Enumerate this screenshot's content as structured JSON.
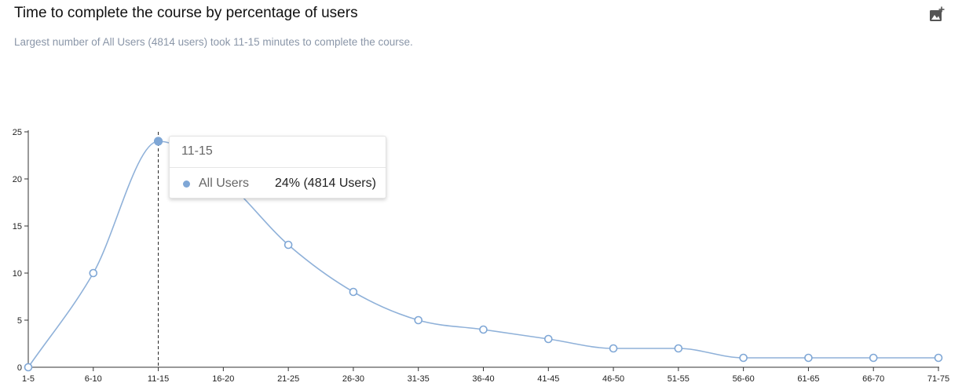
{
  "header": {
    "title": "Time to complete the course by percentage of users",
    "subtitle": "Largest number of All Users (4814 users) took 11-15 minutes to complete the course.",
    "add_image_icon": "add-image-icon"
  },
  "tooltip": {
    "category": "11-15",
    "series_name": "All Users",
    "value_text": "24% (4814 Users)"
  },
  "colors": {
    "series": "#8fb1d9",
    "marker_fill": "#ffffff",
    "active_marker": "#7fa7d6",
    "axis": "#333333"
  },
  "chart_data": {
    "type": "line",
    "title": "Time to complete the course by percentage of users",
    "subtitle": "Largest number of All Users (4814 users) took 11-15 minutes to complete the course.",
    "xlabel": "",
    "ylabel": "",
    "categories": [
      "1-5",
      "6-10",
      "11-15",
      "16-20",
      "21-25",
      "26-30",
      "31-35",
      "36-40",
      "41-45",
      "46-50",
      "51-55",
      "56-60",
      "61-65",
      "66-70",
      "71-75"
    ],
    "series": [
      {
        "name": "All Users",
        "values": [
          0,
          10,
          24,
          20,
          13,
          8,
          5,
          4,
          3,
          2,
          2,
          1,
          1,
          1,
          1
        ]
      }
    ],
    "ylim": [
      0,
      25
    ],
    "yticks": [
      0,
      5,
      10,
      15,
      20,
      25
    ],
    "highlighted_category": "11-15",
    "grid": false,
    "legend": "none"
  }
}
